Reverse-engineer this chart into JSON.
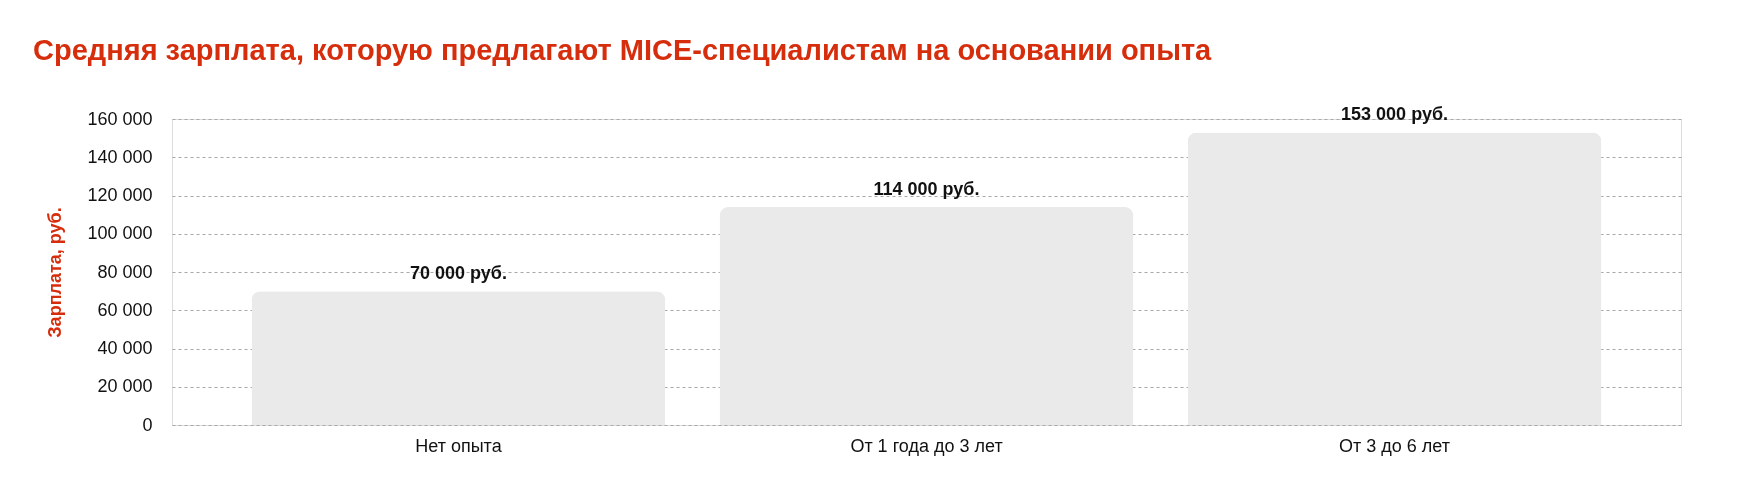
{
  "chart_data": {
    "type": "bar",
    "title": "Средняя зарплата, которую предлагают MICE-специалистам на основании опыта",
    "ylabel": "Зарплата, руб.",
    "categories": [
      "Нет опыта",
      "От 1 года до 3 лет",
      "От 3 до 6 лет"
    ],
    "values": [
      70000,
      114000,
      153000
    ],
    "color": "#eaeaea",
    "value_labels": [
      "70 000 руб.",
      "114 000 руб.",
      "153 000 руб."
    ],
    "ylim": [
      0,
      160000
    ],
    "yticks": [
      0,
      {
        "value": 20000,
        "label": "20 000"
      },
      {
        "value": 40000,
        "label": "40 000"
      },
      {
        "value": 60000,
        "label": "60 000"
      },
      {
        "value": 80000,
        "label": "80 000"
      },
      {
        "value": 100000,
        "label": "100 000"
      },
      {
        "value": 120000,
        "label": "120 000"
      },
      {
        "value": 140000,
        "label": "140 000"
      },
      {
        "value": 160000,
        "label": "160 000"
      }
    ],
    "grid": "y"
  }
}
